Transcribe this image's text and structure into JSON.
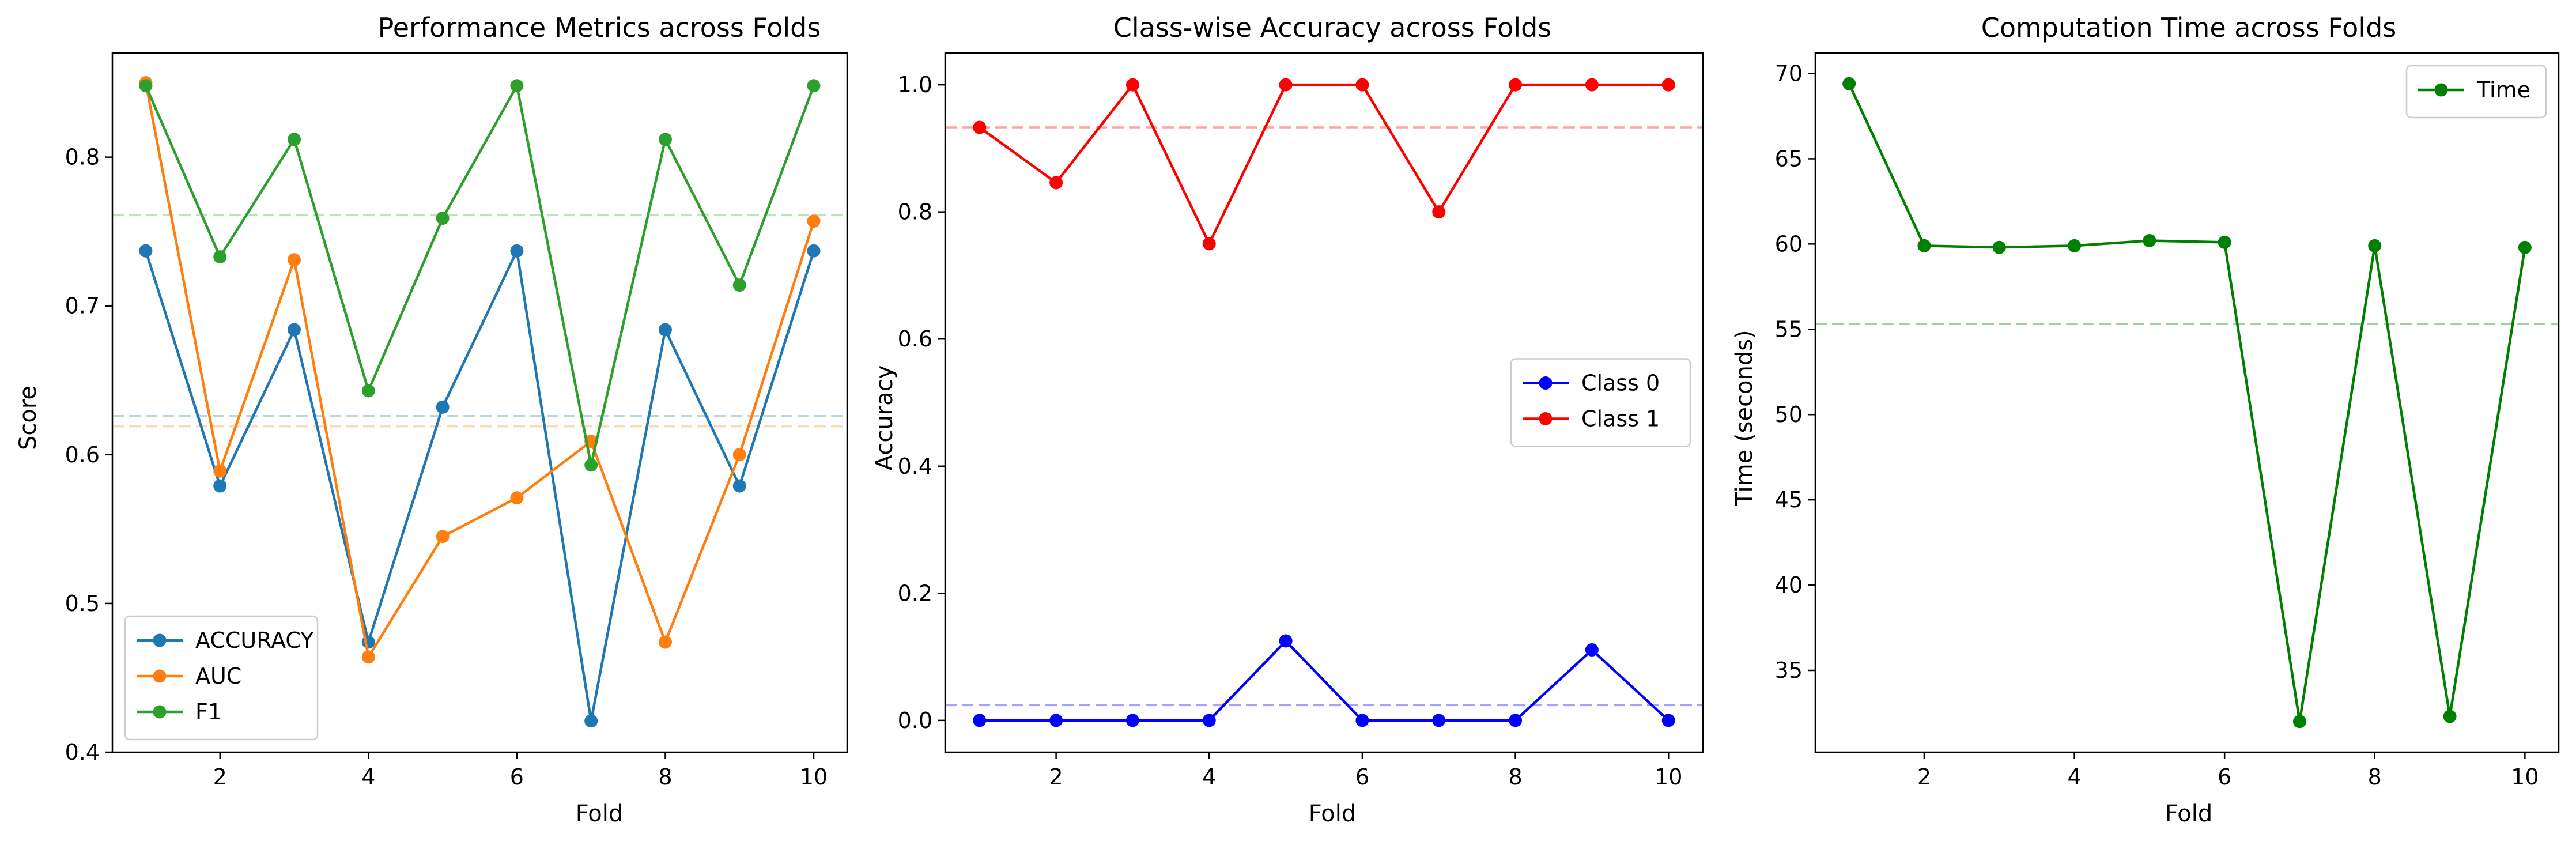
{
  "chart_data": [
    {
      "type": "line",
      "title": "Performance Metrics across Folds",
      "xlabel": "Fold",
      "ylabel": "Score",
      "xlim": [
        0.55,
        10.45
      ],
      "ylim": [
        0.4,
        0.87
      ],
      "xticks": [
        2,
        4,
        6,
        8,
        10
      ],
      "yticks": [
        0.4,
        0.5,
        0.6,
        0.7,
        0.8
      ],
      "grid": false,
      "legend": "lower left",
      "x": [
        1,
        2,
        3,
        4,
        5,
        6,
        7,
        8,
        9,
        10
      ],
      "series": [
        {
          "name": "ACCURACY",
          "color": "#1f77b4",
          "values": [
            0.737,
            0.579,
            0.684,
            0.474,
            0.632,
            0.737,
            0.421,
            0.684,
            0.579,
            0.737
          ],
          "mean": 0.626
        },
        {
          "name": "AUC",
          "color": "#ff7f0e",
          "values": [
            0.85,
            0.589,
            0.731,
            0.464,
            0.545,
            0.571,
            0.609,
            0.474,
            0.6,
            0.757
          ],
          "mean": 0.619
        },
        {
          "name": "F1",
          "color": "#2ca02c",
          "values": [
            0.848,
            0.733,
            0.812,
            0.643,
            0.759,
            0.848,
            0.593,
            0.812,
            0.714,
            0.848
          ],
          "mean": 0.761
        }
      ]
    },
    {
      "type": "line",
      "title": "Class-wise Accuracy across Folds",
      "xlabel": "Fold",
      "ylabel": "Accuracy",
      "xlim": [
        0.55,
        10.45
      ],
      "ylim": [
        -0.05,
        1.05
      ],
      "xticks": [
        2,
        4,
        6,
        8,
        10
      ],
      "yticks": [
        0.0,
        0.2,
        0.4,
        0.6,
        0.8,
        1.0
      ],
      "grid": false,
      "legend": "center right",
      "x": [
        1,
        2,
        3,
        4,
        5,
        6,
        7,
        8,
        9,
        10
      ],
      "series": [
        {
          "name": "Class 0",
          "color": "#0000ff",
          "mean_color": "#9999ff",
          "values": [
            0,
            0,
            0,
            0,
            0.125,
            0,
            0,
            0,
            0.111,
            0
          ],
          "mean": 0.024
        },
        {
          "name": "Class 1",
          "color": "#ff0000",
          "mean_color": "#ff9999",
          "values": [
            0.933,
            0.846,
            1.0,
            0.75,
            1.0,
            1.0,
            0.8,
            1.0,
            1.0,
            1.0
          ],
          "mean": 0.933
        }
      ]
    },
    {
      "type": "line",
      "title": "Computation Time across Folds",
      "xlabel": "Fold",
      "ylabel": "Time (seconds)",
      "xlim": [
        0.55,
        10.45
      ],
      "ylim": [
        30.2,
        71.2
      ],
      "xticks": [
        2,
        4,
        6,
        8,
        10
      ],
      "yticks": [
        35,
        40,
        45,
        50,
        55,
        60,
        65,
        70
      ],
      "grid": false,
      "legend": "upper right",
      "x": [
        1,
        2,
        3,
        4,
        5,
        6,
        7,
        8,
        9,
        10
      ],
      "series": [
        {
          "name": "Time",
          "color": "#008000",
          "mean_color": "#99cc99",
          "values": [
            69.4,
            59.9,
            59.8,
            59.9,
            60.2,
            60.1,
            32.0,
            59.9,
            32.3,
            59.8
          ],
          "mean": 55.3
        }
      ]
    }
  ]
}
